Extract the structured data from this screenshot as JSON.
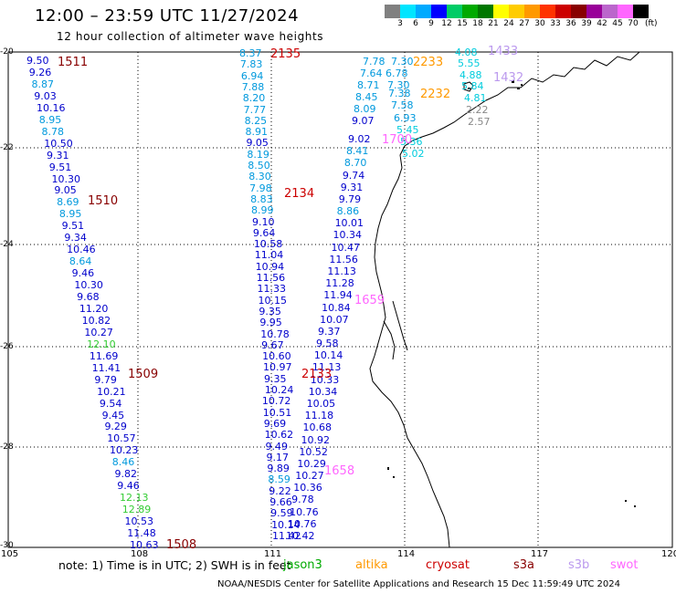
{
  "title": "12:00 – 23:59 UTC 11/27/2024",
  "subtitle": "12 hour collection of altimeter wave heights",
  "scale": {
    "unit": "(ft)",
    "colors": [
      "#808080",
      "#00e5ff",
      "#00aaff",
      "#0000ff",
      "#00cc66",
      "#00aa00",
      "#007700",
      "#ffff00",
      "#ffcc00",
      "#ff9900",
      "#ff3300",
      "#cc0000",
      "#880000",
      "#990099",
      "#bb66cc",
      "#ff66ff",
      "#000000"
    ],
    "labels": [
      "3",
      "6",
      "9",
      "12",
      "15",
      "18",
      "21",
      "24",
      "27",
      "30",
      "33",
      "36",
      "39",
      "42",
      "45",
      "70"
    ]
  },
  "axes": {
    "lon_labels": [
      "105",
      "108",
      "111",
      "114",
      "117",
      "120"
    ],
    "lat_labels": [
      "-20",
      "-22",
      "-24",
      "-26",
      "-28",
      "-30"
    ]
  },
  "note": "note: 1) Time is in UTC; 2) SWH is in feet",
  "satellites": [
    {
      "name": "jason3",
      "color": "#00aa00"
    },
    {
      "name": "altika",
      "color": "#ff9900"
    },
    {
      "name": "cryosat",
      "color": "#cc0000"
    },
    {
      "name": "s3a",
      "color": "#880000"
    },
    {
      "name": "s3b",
      "color": "#bb99ee"
    },
    {
      "name": "swot",
      "color": "#ff66ff"
    }
  ],
  "footer": "NOAA/NESDIS Center for Satellite Applications and Research    15 Dec 11:59:49 UTC 2024",
  "pass_ids": [
    {
      "text": "1511",
      "color": "#880000"
    },
    {
      "text": "1510",
      "color": "#880000"
    },
    {
      "text": "1509",
      "color": "#880000"
    },
    {
      "text": "1508",
      "color": "#880000"
    },
    {
      "text": "2135",
      "color": "#cc0000"
    },
    {
      "text": "2134",
      "color": "#cc0000"
    },
    {
      "text": "2133",
      "color": "#cc0000"
    },
    {
      "text": "2233",
      "color": "#ff9900"
    },
    {
      "text": "2232",
      "color": "#ff9900"
    },
    {
      "text": "1433",
      "color": "#bb99ee"
    },
    {
      "text": "1432",
      "color": "#bb99ee"
    },
    {
      "text": "1700",
      "color": "#ff66ff"
    },
    {
      "text": "1659",
      "color": "#ff66ff"
    },
    {
      "text": "1658",
      "color": "#ff66ff"
    }
  ],
  "tracks": {
    "track_1510": [
      "9.50",
      "9.26",
      "8.87",
      "9.03",
      "10.16",
      "8.95",
      "8.78",
      "10.50",
      "9.31",
      "9.51",
      "10.30",
      "9.05",
      "8.69",
      "8.95",
      "9.51",
      "9.34",
      "10.46",
      "8.64",
      "9.46",
      "10.30",
      "9.68",
      "11.20",
      "10.82",
      "10.27",
      "12.10",
      "11.69",
      "11.41",
      "9.79",
      "10.21",
      "9.54",
      "9.45",
      "9.29",
      "10.57",
      "10.23",
      "8.46",
      "9.82",
      "9.46",
      "12.13",
      "12.89",
      "10.53",
      "11.48",
      "10.63"
    ],
    "track_2134": [
      "8.37",
      "7.83",
      "6.94",
      "7.88",
      "8.20",
      "7.77",
      "8.25",
      "8.91",
      "9.05",
      "8.19",
      "8.50",
      "8.30",
      "7.98",
      "8.83",
      "8.99",
      "9.10",
      "9.64",
      "10.58",
      "11.04",
      "10.94",
      "11.56",
      "11.33",
      "10.15",
      "9.35",
      "9.95",
      "10.78",
      "9.67",
      "10.60",
      "10.97",
      "9.35",
      "10.24",
      "10.72",
      "10.51",
      "9.69",
      "10.62",
      "9.49",
      "9.17",
      "9.89",
      "8.59",
      "9.22",
      "9.66",
      "9.59",
      "10.14",
      "11.42"
    ],
    "track_2133": [
      "9.02",
      "8.41",
      "8.70",
      "9.74",
      "9.31",
      "9.79",
      "8.86",
      "10.01",
      "10.34",
      "10.47",
      "11.56",
      "11.13",
      "11.28",
      "11.94",
      "10.84",
      "10.07",
      "9.37",
      "9.58",
      "10.14",
      "11.13",
      "10.33",
      "10.34",
      "10.05",
      "11.18",
      "10.68",
      "10.92",
      "10.52",
      "10.29",
      "10.27",
      "10.36",
      "9.78",
      "10.76",
      "10.76",
      "10.42"
    ],
    "track_2232": [
      "7.78",
      "7.64",
      "8.71",
      "8.45",
      "8.09",
      "9.07",
      "7.30",
      "6.78",
      "7.30",
      "7.38",
      "7.58",
      "6.93",
      "5.45",
      "5.36",
      "5.02"
    ],
    "track_1432": [
      "4.08",
      "5.55",
      "4.88",
      "5.84",
      "4.81",
      "2.22",
      "2.57"
    ]
  }
}
